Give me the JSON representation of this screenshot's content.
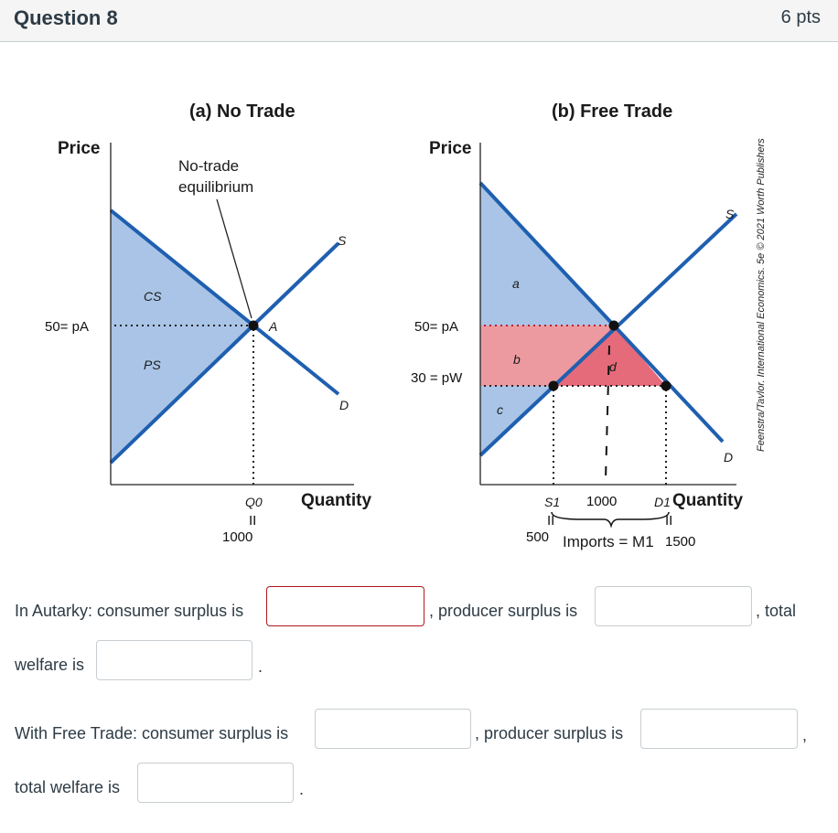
{
  "question": {
    "title": "Question 8",
    "points": "6 pts"
  },
  "figure": {
    "panel_a_title": "(a) No Trade",
    "panel_b_title": "(b) Free Trade",
    "price_label": "Price",
    "quantity_label": "Quantity",
    "no_trade_label_line1": "No-trade",
    "no_trade_label_line2": "equilibrium",
    "supply_label": "S",
    "demand_label": "D",
    "cs_label": "CS",
    "ps_label": "PS",
    "point_a_label": "A",
    "area_a": "a",
    "area_b": "b",
    "area_c": "c",
    "area_d": "d",
    "q0_label": "Q0",
    "s1_label": "S1",
    "d1_label": "D1",
    "imports_label": "Imports = M1",
    "credit": "Feenstra/Taylor, International Economics, 5e © 2021 Worth Publishers",
    "handwritten": {
      "autarky_price": "50= pA",
      "free_price": "50= pA",
      "world_price": "30 = pW",
      "q0_value": "1000",
      "mid_value": "1000",
      "s1_value": "500",
      "m_value": "1500",
      "equals": "II"
    },
    "colors": {
      "blue_area": "#a9c4e6",
      "line_blue": "#1f5fb0",
      "pink": "#ec9aa0",
      "red": "#e56a7a"
    }
  },
  "prompts": {
    "autarky_cs": "In Autarky: consumer surplus is",
    "autarky_ps": ", producer surplus is",
    "autarky_total1": ", total",
    "autarky_total2": "welfare is",
    "period1": ".",
    "free_cs": "With Free Trade: consumer surplus is",
    "free_ps": ", producer surplus is",
    "comma": ",",
    "free_total": "total welfare is",
    "period2": "."
  },
  "answers": {
    "autarky_cs": "",
    "autarky_ps": "",
    "autarky_total": "",
    "free_cs": "",
    "free_ps": "",
    "free_total": ""
  }
}
